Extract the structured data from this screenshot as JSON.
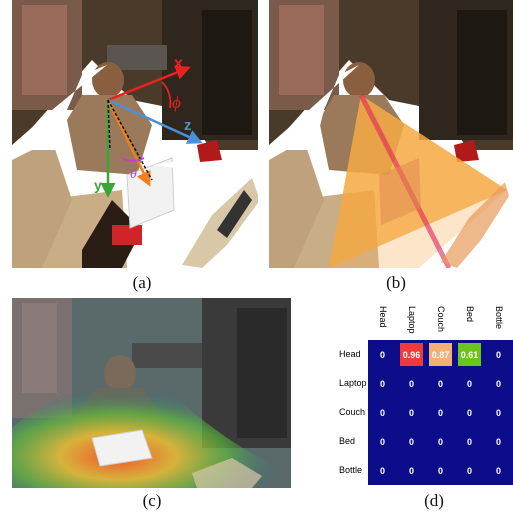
{
  "captions": {
    "a": "(a)",
    "b": "(b)",
    "c": "(c)",
    "d": "(d)"
  },
  "axes": {
    "x": "x",
    "y": "y",
    "z": "z",
    "phi": "ϕ",
    "theta": "θ"
  },
  "colors": {
    "x_axis": "#e8231f",
    "y_axis": "#3aa63a",
    "z_axis": "#4a90d9",
    "gaze": "#f07f1c",
    "theta": "#c044c8",
    "cone": "#f5a030",
    "matrix_bg": "#0d0d8c",
    "cell_head_laptop": "#f03a3a",
    "cell_head_couch": "#f5b074",
    "cell_head_bed": "#6cc41c"
  },
  "matrix": {
    "columns": [
      "Head",
      "Laptop",
      "Couch",
      "Bed",
      "Bottle"
    ],
    "rows": [
      "Head",
      "Laptop",
      "Couch",
      "Bed",
      "Bottle"
    ],
    "values": [
      [
        "0",
        "0.96",
        "0.87",
        "0.61",
        "0"
      ],
      [
        "0",
        "0",
        "0",
        "0",
        "0"
      ],
      [
        "0",
        "0",
        "0",
        "0",
        "0"
      ],
      [
        "0",
        "0",
        "0",
        "0",
        "0"
      ],
      [
        "0",
        "0",
        "0",
        "0",
        "0"
      ]
    ]
  }
}
